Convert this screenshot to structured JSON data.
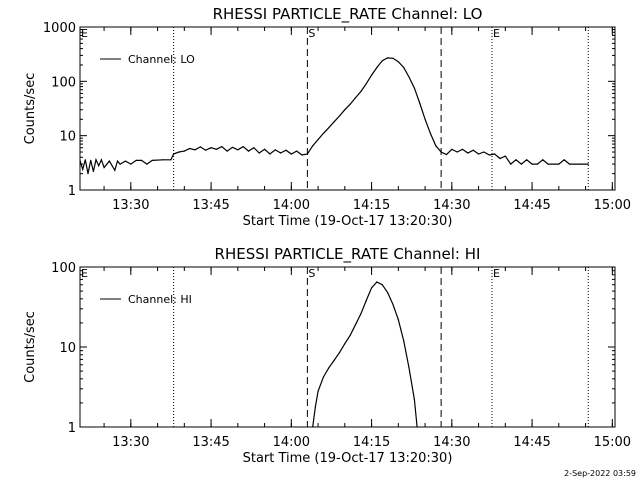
{
  "footer_timestamp": "2-Sep-2022 03:59",
  "chart_data": [
    {
      "type": "line",
      "title": "RHESSI PARTICLE_RATE Channel: LO",
      "xlabel": "Start Time (19-Oct-17 13:20:30)",
      "ylabel": "Counts/sec",
      "yscale": "log",
      "xlim": [
        "13:20:30",
        "15:00:30"
      ],
      "ylim": [
        1,
        1000
      ],
      "x_ticks": [
        "13:30",
        "13:45",
        "14:00",
        "14:15",
        "14:30",
        "14:45",
        "15:00"
      ],
      "y_ticks": [
        "1",
        "10",
        "100",
        "1000"
      ],
      "markers": [
        {
          "label": "E",
          "time": "13:20:30",
          "style": "dotted"
        },
        {
          "label": "",
          "time": "13:38:00",
          "style": "dotted"
        },
        {
          "label": "S",
          "time": "14:03:00",
          "style": "dashed"
        },
        {
          "label": "",
          "time": "14:28:00",
          "style": "dashed"
        },
        {
          "label": "E",
          "time": "14:37:30",
          "style": "dotted"
        },
        {
          "label": "",
          "time": "14:55:30",
          "style": "dotted"
        }
      ],
      "legend": "top-left",
      "series": [
        {
          "name": "Channel: LO",
          "points": [
            [
              "13:20:30",
              3.5
            ],
            [
              "13:21:00",
              2.4
            ],
            [
              "13:21:30",
              3.6
            ],
            [
              "13:22:00",
              2.0
            ],
            [
              "13:22:30",
              3.5
            ],
            [
              "13:23:00",
              2.2
            ],
            [
              "13:23:30",
              3.6
            ],
            [
              "13:24:00",
              2.8
            ],
            [
              "13:24:30",
              3.6
            ],
            [
              "13:25:00",
              2.6
            ],
            [
              "13:26:00",
              3.4
            ],
            [
              "13:27:00",
              2.3
            ],
            [
              "13:27:30",
              3.4
            ],
            [
              "13:28:00",
              3.0
            ],
            [
              "13:29:00",
              3.4
            ],
            [
              "13:30:00",
              3.0
            ],
            [
              "13:31:00",
              3.5
            ],
            [
              "13:32:00",
              3.5
            ],
            [
              "13:33:00",
              3.0
            ],
            [
              "13:34:00",
              3.5
            ],
            [
              "13:36:00",
              3.6
            ],
            [
              "13:37:30",
              3.6
            ],
            [
              "13:38:00",
              4.6
            ],
            [
              "13:39:00",
              5.0
            ],
            [
              "13:40:00",
              5.2
            ],
            [
              "13:41:00",
              5.8
            ],
            [
              "13:42:00",
              5.5
            ],
            [
              "13:43:00",
              6.2
            ],
            [
              "13:44:00",
              5.4
            ],
            [
              "13:45:00",
              6.0
            ],
            [
              "13:46:00",
              5.6
            ],
            [
              "13:47:00",
              6.3
            ],
            [
              "13:48:00",
              5.2
            ],
            [
              "13:49:00",
              6.1
            ],
            [
              "13:50:00",
              5.5
            ],
            [
              "13:51:00",
              6.3
            ],
            [
              "13:52:00",
              5.2
            ],
            [
              "13:53:00",
              6.0
            ],
            [
              "13:54:00",
              4.8
            ],
            [
              "13:55:00",
              5.6
            ],
            [
              "13:56:00",
              4.6
            ],
            [
              "13:57:00",
              5.5
            ],
            [
              "13:58:00",
              4.8
            ],
            [
              "13:59:00",
              5.4
            ],
            [
              "14:00:00",
              4.6
            ],
            [
              "14:01:00",
              5.2
            ],
            [
              "14:02:00",
              4.4
            ],
            [
              "14:03:00",
              4.6
            ],
            [
              "14:04:00",
              6.5
            ],
            [
              "14:05:00",
              8.5
            ],
            [
              "14:06:00",
              11
            ],
            [
              "14:07:00",
              14
            ],
            [
              "14:08:00",
              18
            ],
            [
              "14:09:00",
              23
            ],
            [
              "14:10:00",
              30
            ],
            [
              "14:11:00",
              38
            ],
            [
              "14:12:00",
              50
            ],
            [
              "14:13:00",
              65
            ],
            [
              "14:14:00",
              90
            ],
            [
              "14:15:00",
              130
            ],
            [
              "14:16:00",
              180
            ],
            [
              "14:17:00",
              240
            ],
            [
              "14:18:00",
              270
            ],
            [
              "14:19:00",
              265
            ],
            [
              "14:20:00",
              230
            ],
            [
              "14:21:00",
              180
            ],
            [
              "14:22:00",
              120
            ],
            [
              "14:23:00",
              75
            ],
            [
              "14:24:00",
              40
            ],
            [
              "14:25:00",
              20
            ],
            [
              "14:26:00",
              11
            ],
            [
              "14:27:00",
              6.5
            ],
            [
              "14:28:00",
              5.0
            ],
            [
              "14:29:00",
              4.5
            ],
            [
              "14:30:00",
              5.6
            ],
            [
              "14:31:00",
              5.0
            ],
            [
              "14:32:00",
              5.6
            ],
            [
              "14:33:00",
              4.8
            ],
            [
              "14:34:00",
              5.4
            ],
            [
              "14:35:00",
              4.6
            ],
            [
              "14:36:00",
              5.0
            ],
            [
              "14:37:00",
              4.4
            ],
            [
              "14:38:00",
              4.6
            ],
            [
              "14:39:00",
              3.8
            ],
            [
              "14:40:00",
              4.2
            ],
            [
              "14:41:00",
              3.0
            ],
            [
              "14:42:00",
              3.6
            ],
            [
              "14:43:00",
              3.0
            ],
            [
              "14:44:00",
              3.6
            ],
            [
              "14:45:00",
              3.0
            ],
            [
              "14:46:00",
              3.0
            ],
            [
              "14:47:00",
              3.6
            ],
            [
              "14:48:00",
              3.0
            ],
            [
              "14:50:00",
              3.0
            ],
            [
              "14:51:00",
              3.6
            ],
            [
              "14:52:00",
              3.0
            ],
            [
              "14:54:00",
              3.0
            ],
            [
              "14:55:30",
              3.0
            ]
          ]
        }
      ]
    },
    {
      "type": "line",
      "title": "RHESSI PARTICLE_RATE Channel: HI",
      "xlabel": "Start Time (19-Oct-17 13:20:30)",
      "ylabel": "Counts/sec",
      "yscale": "log",
      "xlim": [
        "13:20:30",
        "15:00:30"
      ],
      "ylim": [
        1,
        100
      ],
      "x_ticks": [
        "13:30",
        "13:45",
        "14:00",
        "14:15",
        "14:30",
        "14:45",
        "15:00"
      ],
      "y_ticks": [
        "1",
        "10",
        "100"
      ],
      "markers": [
        {
          "label": "E",
          "time": "13:20:30",
          "style": "dotted"
        },
        {
          "label": "",
          "time": "13:38:00",
          "style": "dotted"
        },
        {
          "label": "S",
          "time": "14:03:00",
          "style": "dashed"
        },
        {
          "label": "",
          "time": "14:28:00",
          "style": "dashed"
        },
        {
          "label": "E",
          "time": "14:37:30",
          "style": "dotted"
        },
        {
          "label": "",
          "time": "14:55:30",
          "style": "dotted"
        }
      ],
      "legend": "top-left",
      "series": [
        {
          "name": "Channel: HI",
          "points": [
            [
              "14:04:00",
              1.0
            ],
            [
              "14:04:30",
              1.8
            ],
            [
              "14:05:00",
              2.8
            ],
            [
              "14:06:00",
              4.2
            ],
            [
              "14:07:00",
              5.5
            ],
            [
              "14:08:00",
              6.8
            ],
            [
              "14:09:00",
              8.5
            ],
            [
              "14:10:00",
              11
            ],
            [
              "14:11:00",
              14
            ],
            [
              "14:12:00",
              19
            ],
            [
              "14:13:00",
              26
            ],
            [
              "14:14:00",
              38
            ],
            [
              "14:15:00",
              55
            ],
            [
              "14:16:00",
              65
            ],
            [
              "14:17:00",
              60
            ],
            [
              "14:18:00",
              48
            ],
            [
              "14:19:00",
              34
            ],
            [
              "14:20:00",
              22
            ],
            [
              "14:21:00",
              12
            ],
            [
              "14:22:00",
              5.5
            ],
            [
              "14:23:00",
              2.2
            ],
            [
              "14:23:30",
              1.0
            ]
          ]
        }
      ]
    }
  ]
}
